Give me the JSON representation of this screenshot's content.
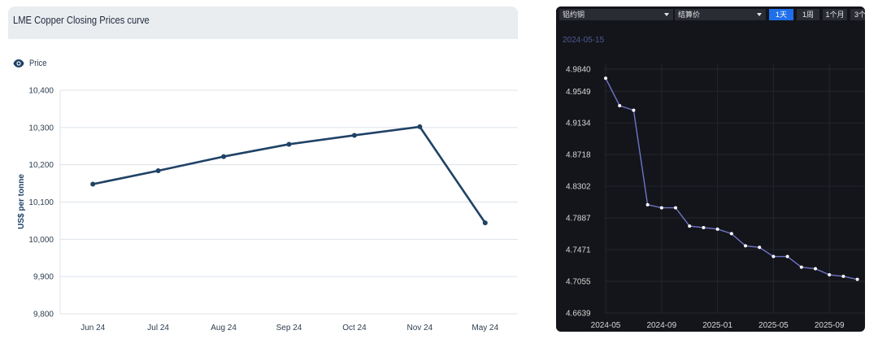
{
  "chart_data": [
    {
      "type": "line",
      "title": "LME Copper Closing Prices curve",
      "legend": {
        "label": "Price",
        "position": "top-left"
      },
      "ylabel": "US$ per tonne",
      "categories": [
        "Jun 24",
        "Jul 24",
        "Aug 24",
        "Sep 24",
        "Oct 24",
        "Nov 24",
        "May 24"
      ],
      "series": [
        {
          "name": "Price",
          "values": [
            10148,
            10184,
            10222,
            10255,
            10279,
            10302,
            10044
          ]
        }
      ],
      "yticks": [
        "10,400",
        "10,300",
        "10,200",
        "10,100",
        "10,000",
        "9,900",
        "9,800"
      ],
      "ylim": [
        9800,
        10400
      ],
      "grid": true,
      "color": "#1f4266"
    },
    {
      "type": "line",
      "date_label": "2024-05-15",
      "x": [
        "2024-05",
        "2024-06",
        "2024-07",
        "2024-08",
        "2024-09",
        "2024-10",
        "2024-11",
        "2024-12",
        "2025-01",
        "2025-02",
        "2025-03",
        "2025-04",
        "2025-05",
        "2025-06",
        "2025-07",
        "2025-08",
        "2025-09",
        "2025-10",
        "2025-11"
      ],
      "series": [
        {
          "values": [
            4.972,
            4.936,
            4.93,
            4.806,
            4.802,
            4.802,
            4.778,
            4.776,
            4.774,
            4.768,
            4.752,
            4.75,
            4.738,
            4.738,
            4.724,
            4.722,
            4.714,
            4.712,
            4.708
          ]
        }
      ],
      "ytick_labels": [
        "4.9840",
        "4.9549",
        "4.9134",
        "4.8718",
        "4.8302",
        "4.7887",
        "4.7471",
        "4.7055",
        "4.6639"
      ],
      "yticks": [
        4.984,
        4.9549,
        4.9134,
        4.8718,
        4.8302,
        4.7887,
        4.7471,
        4.7055,
        4.6639
      ],
      "ylim": [
        4.6639,
        4.984
      ],
      "xtick_labels": [
        "2024-05",
        "2024-09",
        "2025-01",
        "2025-05",
        "2025-09"
      ],
      "grid": true,
      "color": "#6f74c8"
    }
  ],
  "toolbar": {
    "contract_select": "铝约铜",
    "price_select": "结算价",
    "buttons": [
      {
        "label": "1天",
        "active": true
      },
      {
        "label": "1周",
        "active": false
      },
      {
        "label": "1个月",
        "active": false
      },
      {
        "label": "3个",
        "active": false
      }
    ]
  },
  "icons": {
    "legend": "eye-icon",
    "dropdown": "chevron-down-icon"
  }
}
